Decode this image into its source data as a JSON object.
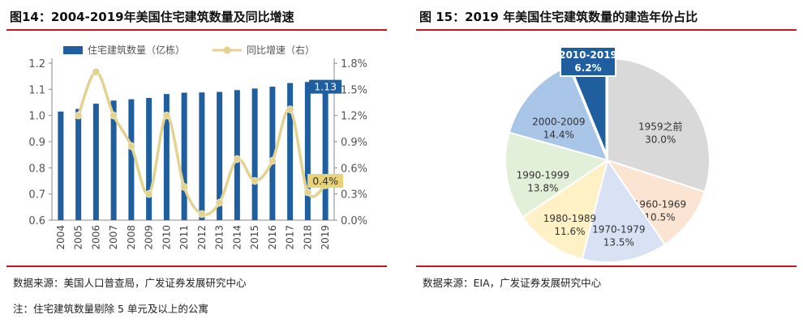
{
  "left": {
    "title": "图14：2004-2019年美国住宅建筑数量及同比增速",
    "source": "数据来源：美国人口普查局，广发证券发展研究中心",
    "note": "注：住宅建筑数量剔除 5 单元及以上的公寓"
  },
  "right": {
    "title": "图 15：2019 年美国住宅建筑数量的建造年份占比",
    "source": "数据来源：EIA，广发证券发展研究中心"
  },
  "colors": {
    "bar": "#1f5f9f",
    "line": "#e3d391",
    "highlight": "#1f5f9f",
    "highlight_line": "#e8d27a"
  },
  "chart_data": [
    {
      "type": "bar",
      "title": "2004-2019年美国住宅建筑数量及同比增速",
      "categories": [
        "2004",
        "2005",
        "2006",
        "2007",
        "2008",
        "2009",
        "2010",
        "2011",
        "2012",
        "2013",
        "2014",
        "2015",
        "2016",
        "2017",
        "2018",
        "2019"
      ],
      "series": [
        {
          "name": "住宅建筑数量（亿栋）",
          "type": "bar",
          "axis": "left",
          "values": [
            1.015,
            1.025,
            1.045,
            1.057,
            1.062,
            1.067,
            1.082,
            1.087,
            1.088,
            1.09,
            1.097,
            1.103,
            1.11,
            1.124,
            1.128,
            1.13
          ]
        },
        {
          "name": "同比增速（右）",
          "type": "line",
          "axis": "right",
          "values": [
            null,
            1.2,
            1.7,
            1.2,
            0.85,
            0.3,
            1.2,
            0.38,
            0.07,
            0.2,
            0.7,
            0.45,
            0.68,
            1.27,
            0.32,
            0.4
          ]
        }
      ],
      "ylim_left": [
        0.6,
        1.2
      ],
      "ylim_right": [
        0.0,
        1.8
      ],
      "yticks_left": [
        "0.6",
        "0.7",
        "0.8",
        "0.9",
        "1.0",
        "1.1",
        "1.2"
      ],
      "yticks_right": [
        "0.0%",
        "0.3%",
        "0.6%",
        "0.9%",
        "1.2%",
        "1.5%",
        "1.8%"
      ],
      "callouts": {
        "bar_last": "1.13",
        "line_last": "0.4%"
      },
      "legend": "top"
    },
    {
      "type": "pie",
      "title": "2019 年美国住宅建筑数量的建造年份占比",
      "slices": [
        {
          "label": "1959之前",
          "value": 30.0,
          "value_label": "30.0%",
          "color": "#d9d9d9"
        },
        {
          "label": "1960-1969",
          "value": 10.5,
          "value_label": "10.5%",
          "color": "#fbe4d2"
        },
        {
          "label": "1970-1979",
          "value": 13.5,
          "value_label": "13.5%",
          "color": "#d8e2f4"
        },
        {
          "label": "1980-1989",
          "value": 11.6,
          "value_label": "11.6%",
          "color": "#fdf1c5"
        },
        {
          "label": "1990-1999",
          "value": 13.8,
          "value_label": "13.8%",
          "color": "#e2f0d9"
        },
        {
          "label": "2000-2009",
          "value": 14.4,
          "value_label": "14.4%",
          "color": "#a9c5e8"
        },
        {
          "label": "2010-2019",
          "value": 6.2,
          "value_label": "6.2%",
          "color": "#1f5f9f"
        }
      ],
      "highlight": "2010-2019"
    }
  ]
}
